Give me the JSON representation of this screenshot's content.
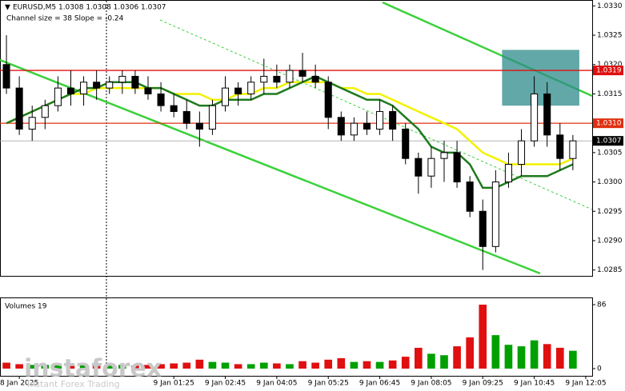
{
  "chart_data": {
    "type": "candlestick",
    "title": "EURUSD,M5  1.0308 1.0308 1.0306 1.0307",
    "subtitle": "Channel size = 38 Slope = -0.24",
    "categories": [
      null,
      "8 Jan 2025",
      null,
      null,
      null,
      null,
      null,
      null,
      null,
      null,
      null,
      null,
      null,
      "9 Jan 01:25",
      null,
      null,
      null,
      "9 Jan 02:45",
      null,
      null,
      null,
      "9 Jan 04:05",
      null,
      null,
      null,
      "9 Jan 05:25",
      null,
      null,
      null,
      "9 Jan 06:45",
      null,
      null,
      null,
      "9 Jan 08:05",
      null,
      null,
      null,
      "9 Jan 09:25",
      null,
      null,
      null,
      "9 Jan 10:45",
      null,
      null,
      null,
      "9 Jan 12:05"
    ],
    "open": [
      1.032,
      1.0316,
      1.0309,
      1.0311,
      1.0313,
      1.0316,
      1.0315,
      1.0317,
      1.0316,
      1.0317,
      1.0318,
      1.0316,
      1.0315,
      1.0313,
      1.0312,
      1.031,
      1.0309,
      1.0313,
      1.0316,
      1.0315,
      1.0317,
      1.0318,
      1.0317,
      1.0319,
      1.0318,
      1.0317,
      1.0311,
      1.0308,
      1.031,
      1.0309,
      1.0312,
      1.0309,
      1.0304,
      1.0301,
      1.0304,
      1.0305,
      1.03,
      1.0295,
      1.0289,
      1.03,
      1.0303,
      1.0307,
      1.0315,
      1.0308,
      1.0304,
      null
    ],
    "high": [
      1.0325,
      1.0318,
      1.0313,
      1.0314,
      1.0318,
      1.0319,
      1.0318,
      1.0319,
      1.0318,
      1.0319,
      1.0319,
      1.0318,
      1.0317,
      1.0315,
      1.0314,
      1.0312,
      1.0314,
      1.0318,
      1.0317,
      1.0318,
      1.0321,
      1.032,
      1.032,
      1.0322,
      1.032,
      1.0318,
      1.0312,
      1.0311,
      1.0312,
      1.0314,
      1.0313,
      1.031,
      1.0305,
      1.0306,
      1.0307,
      1.0307,
      1.0301,
      1.0297,
      1.0302,
      1.0305,
      1.0309,
      1.0318,
      1.0317,
      1.031,
      1.0308,
      null
    ],
    "low": [
      1.0315,
      1.0308,
      1.0307,
      1.0309,
      1.0312,
      1.0313,
      1.0313,
      1.0314,
      1.0315,
      1.0315,
      1.0315,
      1.0314,
      1.0312,
      1.0311,
      1.0309,
      1.0306,
      1.0308,
      1.0312,
      1.0313,
      1.0314,
      1.0315,
      1.0316,
      1.0316,
      1.0317,
      1.0316,
      1.0309,
      1.0307,
      1.0307,
      1.0308,
      1.0308,
      1.0307,
      1.0303,
      1.0298,
      1.0299,
      1.03,
      1.0299,
      1.0294,
      1.0285,
      1.0288,
      1.0299,
      1.0301,
      1.0306,
      1.0306,
      1.0302,
      1.0302,
      null
    ],
    "close": [
      1.0316,
      1.0309,
      1.0311,
      1.0313,
      1.0316,
      1.0315,
      1.0317,
      1.0316,
      1.0317,
      1.0318,
      1.0316,
      1.0315,
      1.0313,
      1.0312,
      1.031,
      1.0309,
      1.0313,
      1.0316,
      1.0315,
      1.0317,
      1.0318,
      1.0317,
      1.0319,
      1.0318,
      1.0317,
      1.0311,
      1.0308,
      1.031,
      1.0309,
      1.0312,
      1.0309,
      1.0304,
      1.0301,
      1.0304,
      1.0305,
      1.03,
      1.0295,
      1.0289,
      1.03,
      1.0303,
      1.0307,
      1.0315,
      1.0308,
      1.0304,
      1.0307,
      null
    ],
    "candle_color": "#000000",
    "overlays": [
      {
        "color": "#f2f200",
        "values": [
          1.031,
          1.0311,
          1.0312,
          1.0313,
          1.0314,
          1.0315,
          1.0315,
          1.0316,
          1.0316,
          1.0316,
          1.0316,
          1.0316,
          1.0316,
          1.0315,
          1.0315,
          1.0315,
          1.0314,
          1.0314,
          1.0315,
          1.0315,
          1.0316,
          1.0316,
          1.0317,
          1.0317,
          1.0317,
          1.0317,
          1.0316,
          1.0316,
          1.0315,
          1.0315,
          1.0314,
          1.0313,
          1.0312,
          1.0311,
          1.031,
          1.0309,
          1.0307,
          1.0305,
          1.0304,
          1.0303,
          1.0303,
          1.0303,
          1.0303,
          1.0303,
          1.0304,
          null
        ]
      },
      {
        "color": "#1e7a1e",
        "values": [
          1.031,
          1.0311,
          1.0312,
          1.0313,
          1.0314,
          1.0315,
          1.0316,
          1.0316,
          1.0317,
          1.0317,
          1.0317,
          1.0316,
          1.0316,
          1.0315,
          1.0314,
          1.0313,
          1.0313,
          1.0314,
          1.0314,
          1.0314,
          1.0315,
          1.0315,
          1.0316,
          1.0317,
          1.0318,
          1.0317,
          1.0316,
          1.0315,
          1.0314,
          1.0314,
          1.0313,
          1.0311,
          1.0309,
          1.0306,
          1.0305,
          1.0305,
          1.0303,
          1.0299,
          1.0299,
          1.03,
          1.0301,
          1.0301,
          1.0301,
          1.0302,
          1.0303,
          null
        ]
      }
    ],
    "ylim": [
      1.0284,
      1.0331
    ],
    "yticks": [
      {
        "value": 1.033,
        "label": "1.0330"
      },
      1.0325,
      {
        "value": 1.032,
        "label": "1.0320"
      },
      1.0315,
      1.0305,
      {
        "value": 1.03,
        "label": "1.0300"
      },
      1.0295,
      {
        "value": 1.029,
        "label": "1.0290"
      },
      1.0285
    ],
    "price_levels": [
      {
        "value": 1.0319,
        "color": "#e01010"
      },
      {
        "value": {
          "value": 1.031,
          "label": "1.0310"
        },
        "color": "#e03010"
      },
      {
        "value": 1.0307,
        "color": "#000000"
      }
    ],
    "zone": {
      "low": 1.0313,
      "high": 1.03225,
      "color": "#2e8b8b"
    },
    "volume_label": "Volumes 19",
    "volumes": [
      8,
      6,
      5,
      5,
      6,
      5,
      5,
      4,
      4,
      5,
      4,
      5,
      6,
      7,
      8,
      12,
      9,
      8,
      6,
      6,
      8,
      7,
      6,
      10,
      8,
      12,
      14,
      9,
      10,
      9,
      11,
      16,
      28,
      20,
      18,
      30,
      42,
      86,
      45,
      32,
      30,
      38,
      33,
      28,
      24,
      null
    ],
    "volume_ylim": [
      0,
      86
    ],
    "volume_ticks": [
      86,
      0
    ],
    "volume_up_color": "#00a000",
    "volume_down_color": "#e01010",
    "watermark": "instaforex",
    "watermark_sub": "Instant Forex Trading"
  }
}
